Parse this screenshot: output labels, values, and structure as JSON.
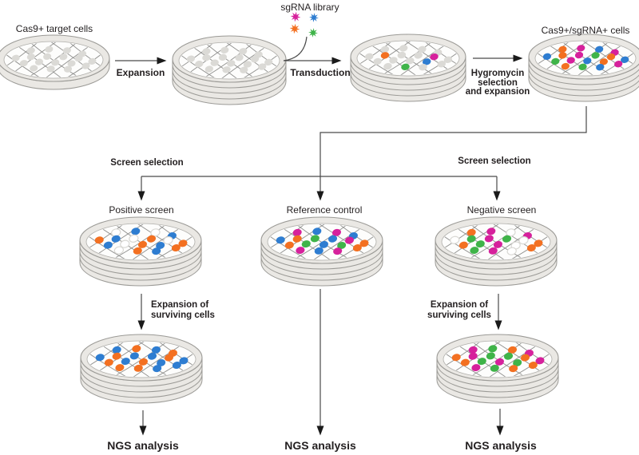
{
  "palette": {
    "orange": "#F37021",
    "blue": "#2E7DD1",
    "magenta": "#D6219C",
    "green": "#3FB449",
    "gray": "#DBDAD6",
    "faded_fill": "#FFFFFF",
    "faded_stroke": "#D9D8D4",
    "dish_fill": "#EAE8E4",
    "dish_stroke": "#9B9A96",
    "inner_fill": "#FDFDFC",
    "inner_stroke": "#B0AFAB",
    "lattice": "#8F8F8D",
    "line": "#4A4A4A",
    "arrow": "#1A1A1A",
    "text": "#231F20"
  },
  "labels": {
    "cas9_target": "Cas9+ target cells",
    "expansion": "Expansion",
    "sgrna_library": "sgRNA library",
    "transduction": "Transduction",
    "hygromycin_lines": [
      "Hygromycin",
      "selection",
      "and expansion"
    ],
    "cas9_sgrna": "Cas9+/sgRNA+ cells",
    "screen_selection": "Screen selection",
    "positive_screen": "Positive screen",
    "reference_control": "Reference control",
    "negative_screen": "Negative screen",
    "expansion_surviving_lines": [
      "Expansion of",
      "surviving cells"
    ],
    "ngs_analysis": "NGS analysis"
  },
  "sgrna_stars": [
    "magenta",
    "blue",
    "orange",
    "green"
  ],
  "dishes": [
    {
      "id": "dish-cas9-target",
      "cells": [
        "gray",
        "gray",
        "gray",
        "gray",
        "gray",
        "gray",
        "gray",
        "gray",
        "gray",
        "gray",
        "gray",
        "gray",
        "gray",
        "gray",
        "gray",
        "gray",
        "gray",
        "gray"
      ]
    },
    {
      "id": "dish-expanded",
      "cells": [
        "gray",
        "gray",
        "gray",
        "gray",
        "gray",
        "gray",
        "gray",
        "gray",
        "gray",
        "gray",
        "gray",
        "gray",
        "gray",
        "gray",
        "gray",
        "gray",
        "gray",
        "gray"
      ]
    },
    {
      "id": "dish-transduced",
      "cells": [
        "gray",
        "gray",
        "gray",
        "gray",
        "gray",
        "orange",
        "gray",
        "gray",
        "magenta",
        "gray",
        "gray",
        "gray",
        "gray",
        "blue",
        "gray",
        "gray",
        "green",
        "gray"
      ]
    },
    {
      "id": "dish-cas9-sgrna",
      "cells": [
        "orange",
        "magenta",
        "blue",
        "magenta",
        "blue",
        "orange",
        "magenta",
        "green",
        "orange",
        "blue",
        "green",
        "magenta",
        "blue",
        "orange",
        "magenta",
        "orange",
        "green",
        "blue"
      ]
    },
    {
      "id": "dish-positive-screen",
      "cells": [
        "faded",
        "blue",
        "faded",
        "blue",
        "orange",
        "blue",
        "faded",
        "orange",
        "faded",
        "orange",
        "blue",
        "faded",
        "orange",
        "blue",
        "orange",
        "faded",
        "orange",
        "blue"
      ]
    },
    {
      "id": "dish-reference-control",
      "cells": [
        "magenta",
        "blue",
        "magenta",
        "blue",
        "blue",
        "orange",
        "green",
        "blue",
        "magenta",
        "orange",
        "orange",
        "green",
        "blue",
        "green",
        "orange",
        "magenta",
        "blue",
        "magenta"
      ]
    },
    {
      "id": "dish-negative-screen",
      "cells": [
        "orange",
        "magenta",
        "faded",
        "magenta",
        "faded",
        "green",
        "magenta",
        "green",
        "faded",
        "orange",
        "orange",
        "green",
        "magenta",
        "faded",
        "orange",
        "green",
        "magenta",
        "faded"
      ]
    },
    {
      "id": "dish-positive-expanded",
      "cells": [
        "blue",
        "orange",
        "blue",
        "orange",
        "blue",
        "orange",
        "blue",
        "blue",
        "orange",
        "blue",
        "orange",
        "blue",
        "orange",
        "blue",
        "blue",
        "orange",
        "orange",
        "blue"
      ]
    },
    {
      "id": "dish-negative-expanded",
      "cells": [
        "magenta",
        "green",
        "orange",
        "magenta",
        "orange",
        "magenta",
        "green",
        "green",
        "orange",
        "magenta",
        "orange",
        "green",
        "magenta",
        "green",
        "orange",
        "magenta",
        "green",
        "orange"
      ]
    }
  ]
}
